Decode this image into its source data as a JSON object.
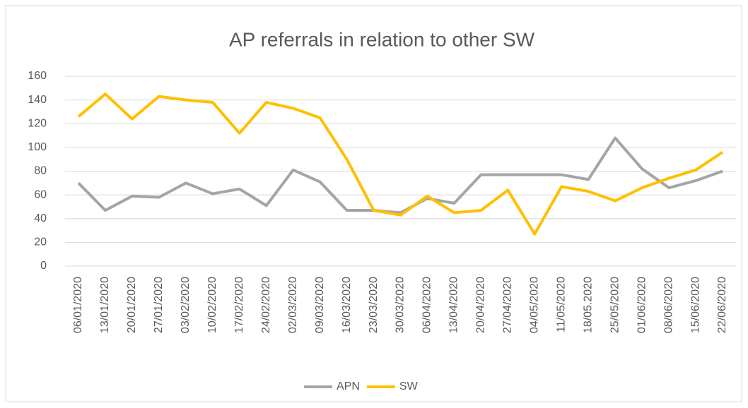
{
  "chart_data": {
    "type": "line",
    "title": "AP referrals in relation to other SW",
    "categories": [
      "06/01/2020",
      "13/01/2020",
      "20/01/2020",
      "27/01/2020",
      "03/02/2020",
      "10/02/2020",
      "17/02/2020",
      "24/02/2020",
      "02/03/2020",
      "09/03/2020",
      "16/03/2020",
      "23/03/2020",
      "30/03/2020",
      "06/04/2020",
      "13/04/2020",
      "20/04/2020",
      "27/04/2020",
      "04/05/2020",
      "11/05/2020",
      "18/05.2020",
      "25/05/2020",
      "01/06/2020",
      "08/06/2020",
      "15/06/2020",
      "22/06/2020"
    ],
    "series": [
      {
        "name": "APN",
        "color": "#a5a5a5",
        "values": [
          70,
          47,
          59,
          58,
          70,
          61,
          65,
          51,
          81,
          71,
          47,
          47,
          45,
          57,
          53,
          77,
          77,
          77,
          77,
          73,
          108,
          82,
          66,
          72,
          80
        ]
      },
      {
        "name": "SW",
        "color": "#ffc000",
        "values": [
          126,
          145,
          124,
          143,
          140,
          138,
          112,
          138,
          133,
          125,
          90,
          47,
          43,
          59,
          45,
          47,
          64,
          27,
          67,
          63,
          55,
          66,
          74,
          81,
          96
        ]
      }
    ],
    "ylim": [
      0,
      160
    ],
    "yticks": [
      0,
      20,
      40,
      60,
      80,
      100,
      120,
      140,
      160
    ],
    "grid": true,
    "legend": "bottom"
  }
}
